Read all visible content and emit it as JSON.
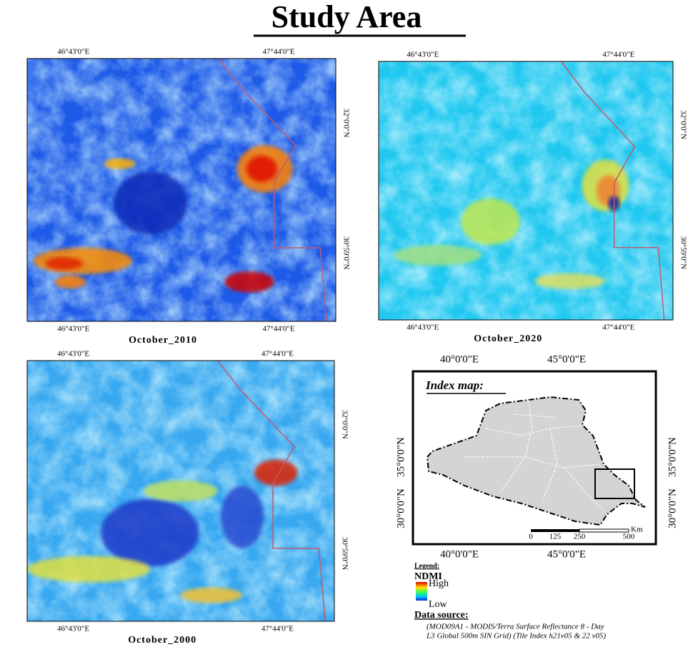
{
  "title": "Study Area",
  "panels": [
    {
      "caption": "October_2010",
      "top_labels": [
        "46°43'0\"E",
        "47°44'0\"E"
      ],
      "bottom_labels": [
        "46°43'0\"E",
        "47°44'0\"E"
      ],
      "side_labels": [
        "32°0'0\"N",
        "30°59'0\"N"
      ]
    },
    {
      "caption": "October_2020",
      "top_labels": [
        "46°43'0\"E",
        "47°44'0\"E"
      ],
      "bottom_labels": [
        "46°43'0\"E",
        "47°44'0\"E"
      ],
      "side_labels": [
        "32°0'0\"N",
        "30°59'0\"N"
      ]
    },
    {
      "caption": "October_2000",
      "top_labels": [
        "46°43'0\"E",
        "47°44'0\"E"
      ],
      "bottom_labels": [
        "46°43'0\"E",
        "47°44'0\"E"
      ],
      "side_labels": [
        "32°0'0\"N",
        "30°59'0\"N"
      ]
    }
  ],
  "index_map": {
    "title": "Index map:",
    "top_labels": [
      "40°0'0\"E",
      "45°0'0\"E"
    ],
    "bottom_labels": [
      "40°0'0\"E",
      "45°0'0\"E"
    ],
    "left_labels": [
      "35°0'0\"N",
      "30°0'0\"N"
    ],
    "right_labels": [
      "35°0'0\"N",
      "30°0'0\"N"
    ],
    "scale_labels": [
      "0",
      "125",
      "250",
      "500"
    ],
    "scale_unit": "Km"
  },
  "legend": {
    "heading": "Legend:",
    "name": "NDMI",
    "high": "High",
    "low": "Low"
  },
  "data_source": {
    "heading": "Data source:",
    "lines": [
      "(MOD09A1 - MODIS/Terra Surface Reflectance 8 - Day",
      "L3 Global 500m SIN Grid)  (Tile Index h21v05 & 22 v05)"
    ]
  }
}
